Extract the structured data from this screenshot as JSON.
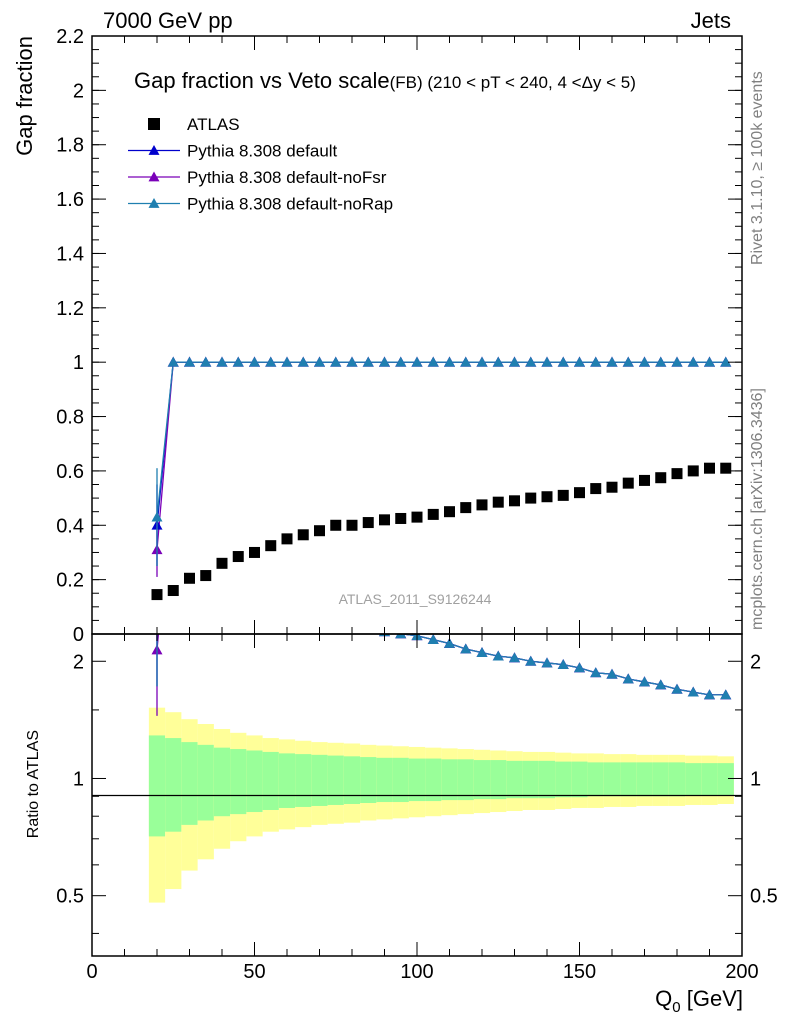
{
  "header": {
    "left": "7000 GeV pp",
    "right": "Jets"
  },
  "side_labels": {
    "rivet": "Rivet 3.1.10, ≥ 100k events",
    "mcplots": "mcplots.cern.ch [arXiv:1306.3436]"
  },
  "chart_data": {
    "type": "scatter",
    "title": "Gap fraction vs Veto scale",
    "subtitle": "(FB) (210 < pT < 240, 4 <Δy < 5)",
    "watermark": "ATLAS_2011_S9126244",
    "xlabel": "Q",
    "xlabel_sub": "0",
    "xlabel_unit": " [GeV]",
    "ylabel": "Gap fraction",
    "ratio_ylabel": "Ratio to ATLAS",
    "xlim": [
      0,
      200
    ],
    "ylim": [
      0,
      2.2
    ],
    "ratio_ylim": [
      0.35,
      2.35
    ],
    "ratio_log": true,
    "x_ticks": [
      "0",
      "50",
      "100",
      "150",
      "200"
    ],
    "y_ticks": [
      "0",
      "0.2",
      "0.4",
      "0.6",
      "0.8",
      "1",
      "1.2",
      "1.4",
      "1.6",
      "1.8",
      "2",
      "2.2"
    ],
    "ratio_ticks": [
      "0.5",
      "1",
      "2"
    ],
    "legend": [
      {
        "label": "ATLAS",
        "color": "#000000",
        "marker": "square"
      },
      {
        "label": "Pythia 8.308 default",
        "color": "#0000cc",
        "marker": "triangle"
      },
      {
        "label": "Pythia 8.308 default-noFsr",
        "color": "#7a00b8",
        "marker": "triangle"
      },
      {
        "label": "Pythia 8.308 default-noRap",
        "color": "#1f7fb0",
        "marker": "triangle"
      }
    ],
    "atlas": {
      "x": [
        20,
        25,
        30,
        35,
        40,
        45,
        50,
        55,
        60,
        65,
        70,
        75,
        80,
        85,
        90,
        95,
        100,
        105,
        110,
        115,
        120,
        125,
        130,
        135,
        140,
        145,
        150,
        155,
        160,
        165,
        170,
        175,
        180,
        185,
        190,
        195
      ],
      "y": [
        0.145,
        0.16,
        0.205,
        0.215,
        0.26,
        0.285,
        0.3,
        0.325,
        0.35,
        0.365,
        0.38,
        0.4,
        0.4,
        0.41,
        0.42,
        0.425,
        0.43,
        0.44,
        0.45,
        0.465,
        0.475,
        0.485,
        0.49,
        0.5,
        0.505,
        0.51,
        0.52,
        0.535,
        0.54,
        0.555,
        0.565,
        0.575,
        0.59,
        0.6,
        0.61,
        0.61
      ],
      "err_inner": [
        0.29,
        0.27,
        0.24,
        0.22,
        0.2,
        0.19,
        0.18,
        0.17,
        0.16,
        0.155,
        0.15,
        0.145,
        0.14,
        0.135,
        0.13,
        0.13,
        0.125,
        0.125,
        0.12,
        0.12,
        0.115,
        0.115,
        0.11,
        0.11,
        0.11,
        0.105,
        0.105,
        0.1,
        0.1,
        0.1,
        0.1,
        0.1,
        0.1,
        0.095,
        0.095,
        0.095
      ],
      "err_outer": [
        0.52,
        0.48,
        0.42,
        0.38,
        0.34,
        0.31,
        0.29,
        0.27,
        0.26,
        0.25,
        0.24,
        0.235,
        0.23,
        0.22,
        0.215,
        0.21,
        0.205,
        0.2,
        0.195,
        0.19,
        0.185,
        0.18,
        0.175,
        0.17,
        0.17,
        0.165,
        0.16,
        0.16,
        0.155,
        0.155,
        0.15,
        0.15,
        0.15,
        0.145,
        0.145,
        0.14
      ]
    },
    "series": [
      {
        "name": "Pythia 8.308 default",
        "color": "#0000cc",
        "x": [
          20,
          25,
          30,
          35,
          40,
          45,
          50,
          55,
          60,
          65,
          70,
          75,
          80,
          85,
          90,
          95,
          100,
          105,
          110,
          115,
          120,
          125,
          130,
          135,
          140,
          145,
          150,
          155,
          160,
          165,
          170,
          175,
          180,
          185,
          190,
          195
        ],
        "y": [
          0.4,
          1.0,
          1.0,
          1.0,
          1.0,
          1.0,
          1.0,
          1.0,
          1.0,
          1.0,
          1.0,
          1.0,
          1.0,
          1.0,
          1.0,
          1.0,
          1.0,
          1.0,
          1.0,
          1.0,
          1.0,
          1.0,
          1.0,
          1.0,
          1.0,
          1.0,
          1.0,
          1.0,
          1.0,
          1.0,
          1.0,
          1.0,
          1.0,
          1.0,
          1.0,
          1.0
        ],
        "yerr": [
          0.15,
          0,
          0,
          0,
          0,
          0,
          0,
          0,
          0,
          0,
          0,
          0,
          0,
          0,
          0,
          0,
          0,
          0,
          0,
          0,
          0,
          0,
          0,
          0,
          0,
          0,
          0,
          0,
          0,
          0,
          0,
          0,
          0,
          0,
          0,
          0
        ]
      },
      {
        "name": "Pythia 8.308 default-noFsr",
        "color": "#7a00b8",
        "x": [
          20,
          25,
          30,
          35,
          40,
          45,
          50,
          55,
          60,
          65,
          70,
          75,
          80,
          85,
          90,
          95,
          100,
          105,
          110,
          115,
          120,
          125,
          130,
          135,
          140,
          145,
          150,
          155,
          160,
          165,
          170,
          175,
          180,
          185,
          190,
          195
        ],
        "y": [
          0.31,
          1.0,
          1.0,
          1.0,
          1.0,
          1.0,
          1.0,
          1.0,
          1.0,
          1.0,
          1.0,
          1.0,
          1.0,
          1.0,
          1.0,
          1.0,
          1.0,
          1.0,
          1.0,
          1.0,
          1.0,
          1.0,
          1.0,
          1.0,
          1.0,
          1.0,
          1.0,
          1.0,
          1.0,
          1.0,
          1.0,
          1.0,
          1.0,
          1.0,
          1.0,
          1.0
        ],
        "yerr": [
          0.1,
          0,
          0,
          0,
          0,
          0,
          0,
          0,
          0,
          0,
          0,
          0,
          0,
          0,
          0,
          0,
          0,
          0,
          0,
          0,
          0,
          0,
          0,
          0,
          0,
          0,
          0,
          0,
          0,
          0,
          0,
          0,
          0,
          0,
          0,
          0
        ]
      },
      {
        "name": "Pythia 8.308 default-noRap",
        "color": "#1f7fb0",
        "x": [
          20,
          25,
          30,
          35,
          40,
          45,
          50,
          55,
          60,
          65,
          70,
          75,
          80,
          85,
          90,
          95,
          100,
          105,
          110,
          115,
          120,
          125,
          130,
          135,
          140,
          145,
          150,
          155,
          160,
          165,
          170,
          175,
          180,
          185,
          190,
          195
        ],
        "y": [
          0.43,
          1.0,
          1.0,
          1.0,
          1.0,
          1.0,
          1.0,
          1.0,
          1.0,
          1.0,
          1.0,
          1.0,
          1.0,
          1.0,
          1.0,
          1.0,
          1.0,
          1.0,
          1.0,
          1.0,
          1.0,
          1.0,
          1.0,
          1.0,
          1.0,
          1.0,
          1.0,
          1.0,
          1.0,
          1.0,
          1.0,
          1.0,
          1.0,
          1.0,
          1.0,
          1.0
        ],
        "yerr": [
          0.18,
          0,
          0,
          0,
          0,
          0,
          0,
          0,
          0,
          0,
          0,
          0,
          0,
          0,
          0,
          0,
          0,
          0,
          0,
          0,
          0,
          0,
          0,
          0,
          0,
          0,
          0,
          0,
          0,
          0,
          0,
          0,
          0,
          0,
          0,
          0
        ]
      }
    ],
    "band_colors": {
      "inner": "#99ff99",
      "outer": "#ffff99"
    }
  }
}
